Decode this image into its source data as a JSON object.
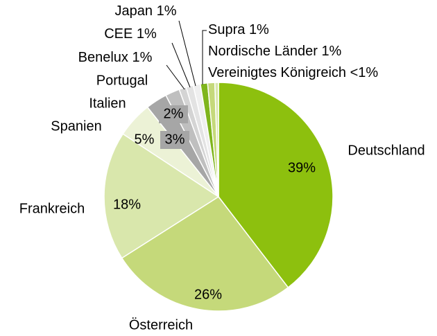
{
  "chart_data": {
    "type": "pie",
    "categories": [
      "Deutschland",
      "Österreich",
      "Frankreich",
      "Spanien",
      "Italien",
      "Portugal",
      "Benelux",
      "CEE",
      "Japan",
      "Supra",
      "Nordische Länder",
      "Vereinigtes Königreich"
    ],
    "values": [
      39,
      26,
      18,
      5,
      3,
      2,
      1,
      1,
      1,
      1,
      1,
      0.5
    ],
    "value_labels": [
      "39%",
      "26%",
      "18%",
      "5%",
      "3%",
      "2%",
      "1%",
      "1%",
      "1%",
      "1%",
      "1%",
      "<1%"
    ],
    "colors": [
      "#8dc00e",
      "#c5d97a",
      "#d9e7ac",
      "#ecf2d6",
      "#a6a6a6",
      "#bfbfbf",
      "#d4d4d4",
      "#e3e3e3",
      "#efefef",
      "#7fb51c",
      "#c5d97a",
      "#d9e7ac"
    ]
  }
}
